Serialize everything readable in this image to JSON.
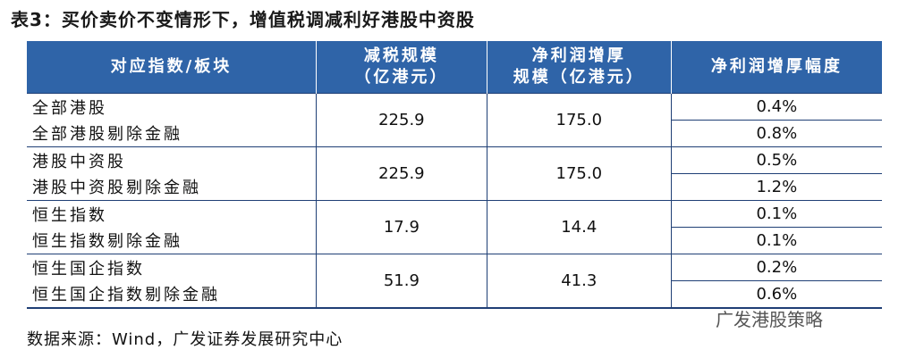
{
  "title": "表3：买价卖价不变情形下，增值税调减利好港股中资股",
  "table": {
    "header": [
      [
        "对应指数/板块"
      ],
      [
        "减税规模",
        "（亿港元）"
      ],
      [
        "净利润增厚",
        "规模（亿港元）"
      ],
      [
        "净利润增厚幅度"
      ]
    ],
    "rows": [
      {
        "names": [
          "全部港股",
          "全部港股剔除金融"
        ],
        "tax_cut": "225.9",
        "profit": "175.0",
        "pct": [
          "0.4%",
          "0.8%"
        ]
      },
      {
        "names": [
          "港股中资股",
          "港股中资股剔除金融"
        ],
        "tax_cut": "225.9",
        "profit": "175.0",
        "pct": [
          "0.5%",
          "1.2%"
        ]
      },
      {
        "names": [
          "恒生指数",
          "恒生指数剔除金融"
        ],
        "tax_cut": "17.9",
        "profit": "14.4",
        "pct": [
          "0.1%",
          "0.1%"
        ]
      },
      {
        "names": [
          "恒生国企指数",
          "恒生国企指数剔除金融"
        ],
        "tax_cut": "51.9",
        "profit": "41.3",
        "pct": [
          "0.2%",
          "0.6%"
        ]
      }
    ]
  },
  "source": "数据来源：Wind，广发证券发展研究中心",
  "watermark": "广发港股策略"
}
